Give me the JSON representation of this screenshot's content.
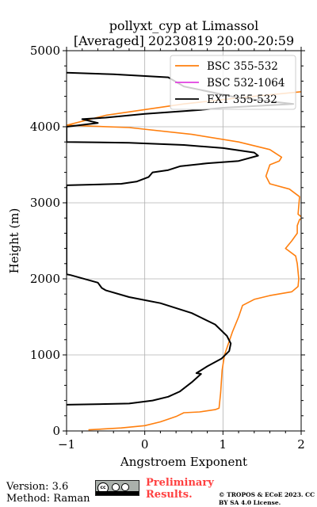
{
  "title_line1": "pollyxt_cyp at Limassol",
  "title_line2": "[Averaged] 20230819 20:00-20:59",
  "footer": {
    "version": "Version: 3.6",
    "method": "Method: Raman",
    "preliminary": "Preliminary Results.",
    "copyright": "© TROPOS & ECoE 2023. CC BY SA 4.0 License."
  },
  "chart_data": {
    "type": "line",
    "xlabel": "Angstroem Exponent",
    "ylabel": "Height (m)",
    "xlim": [
      -1,
      2
    ],
    "ylim": [
      0,
      5000
    ],
    "xticks": [
      "−1",
      "0",
      "1",
      "2"
    ],
    "yticks": [
      "0",
      "1000",
      "2000",
      "3000",
      "4000",
      "5000"
    ],
    "grid": true,
    "legend_position": "top-right",
    "series": [
      {
        "name": "BSC 355-532",
        "color": "#ff7f0e",
        "points": [
          [
            -0.72,
            15
          ],
          [
            -0.3,
            40
          ],
          [
            0.0,
            70
          ],
          [
            0.2,
            120
          ],
          [
            0.4,
            190
          ],
          [
            0.5,
            240
          ],
          [
            0.7,
            250
          ],
          [
            0.9,
            280
          ],
          [
            0.95,
            300
          ],
          [
            0.97,
            500
          ],
          [
            0.99,
            800
          ],
          [
            1.02,
            1000
          ],
          [
            1.12,
            1300
          ],
          [
            1.2,
            1500
          ],
          [
            1.25,
            1650
          ],
          [
            1.4,
            1730
          ],
          [
            1.6,
            1780
          ],
          [
            1.88,
            1830
          ],
          [
            1.96,
            1900
          ],
          [
            1.97,
            2000
          ],
          [
            1.95,
            2200
          ],
          [
            1.93,
            2300
          ],
          [
            1.8,
            2400
          ],
          [
            1.88,
            2500
          ],
          [
            1.95,
            2600
          ],
          [
            1.95,
            2700
          ],
          [
            1.98,
            2780
          ],
          [
            2.02,
            2800
          ],
          [
            1.96,
            2850
          ],
          [
            1.98,
            3080
          ],
          [
            1.85,
            3180
          ],
          [
            1.6,
            3250
          ],
          [
            1.55,
            3350
          ],
          [
            1.6,
            3500
          ],
          [
            1.72,
            3550
          ],
          [
            1.75,
            3600
          ],
          [
            1.6,
            3700
          ],
          [
            1.2,
            3800
          ],
          [
            0.6,
            3900
          ],
          [
            -0.2,
            3990
          ],
          [
            -1,
            4020
          ],
          [
            -0.5,
            4150
          ],
          [
            0.5,
            4300
          ],
          [
            1.2,
            4380
          ],
          [
            2.0,
            4460
          ],
          [
            2.1,
            4500
          ]
        ]
      },
      {
        "name": "BSC 532-1064",
        "color": "#e040e0",
        "points": []
      },
      {
        "name": "EXT 355-532",
        "color": "#000000",
        "points": [
          [
            -1,
            345
          ],
          [
            -0.2,
            360
          ],
          [
            0.1,
            400
          ],
          [
            0.3,
            450
          ],
          [
            0.45,
            520
          ],
          [
            0.6,
            640
          ],
          [
            0.72,
            750
          ],
          [
            0.66,
            760
          ],
          [
            0.8,
            850
          ],
          [
            0.98,
            950
          ],
          [
            1.08,
            1050
          ],
          [
            1.1,
            1150
          ],
          [
            1.05,
            1250
          ],
          [
            0.9,
            1400
          ],
          [
            0.6,
            1550
          ],
          [
            0.2,
            1680
          ],
          [
            -0.2,
            1760
          ],
          [
            -0.5,
            1850
          ],
          [
            -0.55,
            1880
          ],
          [
            -0.6,
            1950
          ],
          [
            -0.95,
            2050
          ],
          [
            -1,
            2060
          ],
          [
            -1,
            3230
          ],
          [
            -0.3,
            3250
          ],
          [
            -0.1,
            3280
          ],
          [
            0.05,
            3340
          ],
          [
            0.1,
            3400
          ],
          [
            0.3,
            3430
          ],
          [
            0.45,
            3480
          ],
          [
            0.8,
            3520
          ],
          [
            1.2,
            3550
          ],
          [
            1.45,
            3620
          ],
          [
            1.4,
            3660
          ],
          [
            1.0,
            3720
          ],
          [
            0.5,
            3760
          ],
          [
            -0.2,
            3790
          ],
          [
            -1,
            3800
          ],
          [
            -1,
            4000
          ],
          [
            -0.6,
            4050
          ],
          [
            -0.8,
            4100
          ],
          [
            -0.5,
            4120
          ],
          [
            0.0,
            4170
          ],
          [
            0.7,
            4220
          ],
          [
            1.0,
            4250
          ],
          [
            1.9,
            4300
          ],
          [
            1.2,
            4380
          ],
          [
            0.5,
            4530
          ],
          [
            0.3,
            4650
          ],
          [
            -0.4,
            4690
          ],
          [
            -1,
            4710
          ]
        ]
      }
    ]
  }
}
